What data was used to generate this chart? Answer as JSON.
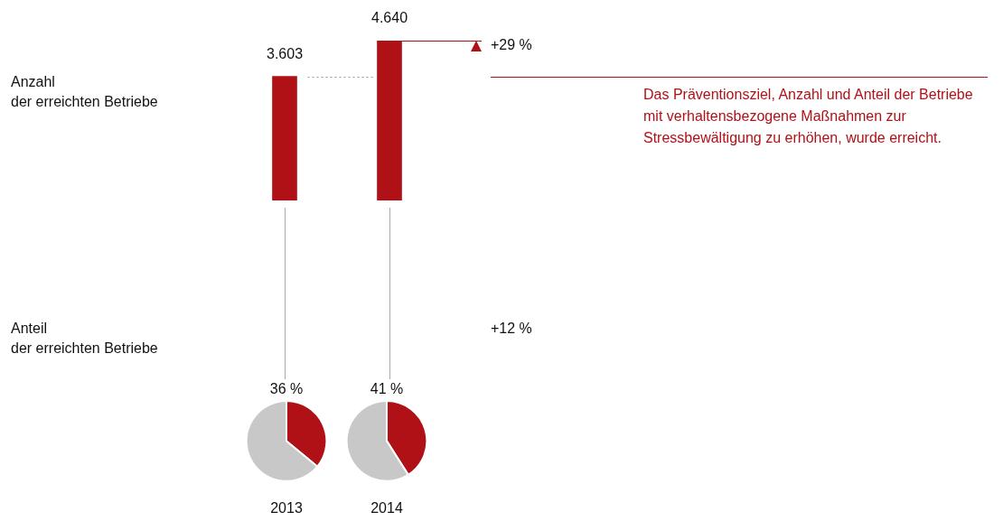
{
  "chart_data": [
    {
      "type": "bar",
      "ylabel": "Anzahl\nder erreichten Betriebe",
      "categories": [
        null,
        null
      ],
      "values": [
        3603,
        4640
      ],
      "value_labels": [
        "3.603",
        "4.640"
      ],
      "color": "#b01117",
      "annotations": [
        "+29 %"
      ],
      "ref_lines": [
        {
          "axis": "y",
          "value": 3603,
          "color": "#999999",
          "line_style": "dotted"
        },
        {
          "axis": "y",
          "value": 4640,
          "color": "#b01117",
          "line_style": "solid"
        },
        {
          "axis": "y",
          "value": 3603,
          "color": "#b01117",
          "line_style": "solid",
          "label": "Das Präventionsziel, Anzahl und Anteil der Betriebe mit verhaltensbezogene Maßnahmen zur Stressbewältigung zu erhöhen, wurde erreicht."
        }
      ]
    },
    {
      "type": "pie",
      "title": "2013",
      "ylabel": "Anteil\nder erreichten Betriebe",
      "categories": [
        null,
        null
      ],
      "values": [
        36,
        64
      ],
      "colors": [
        "#b01117",
        "#c8c8c8"
      ],
      "value_labels": [
        "36 %",
        null
      ]
    },
    {
      "type": "pie",
      "title": "2014",
      "categories": [
        null,
        null
      ],
      "values": [
        41,
        59
      ],
      "colors": [
        "#b01117",
        "#c8c8c8"
      ],
      "value_labels": [
        "41 %",
        null
      ],
      "annotations": [
        "+12 %"
      ]
    }
  ]
}
